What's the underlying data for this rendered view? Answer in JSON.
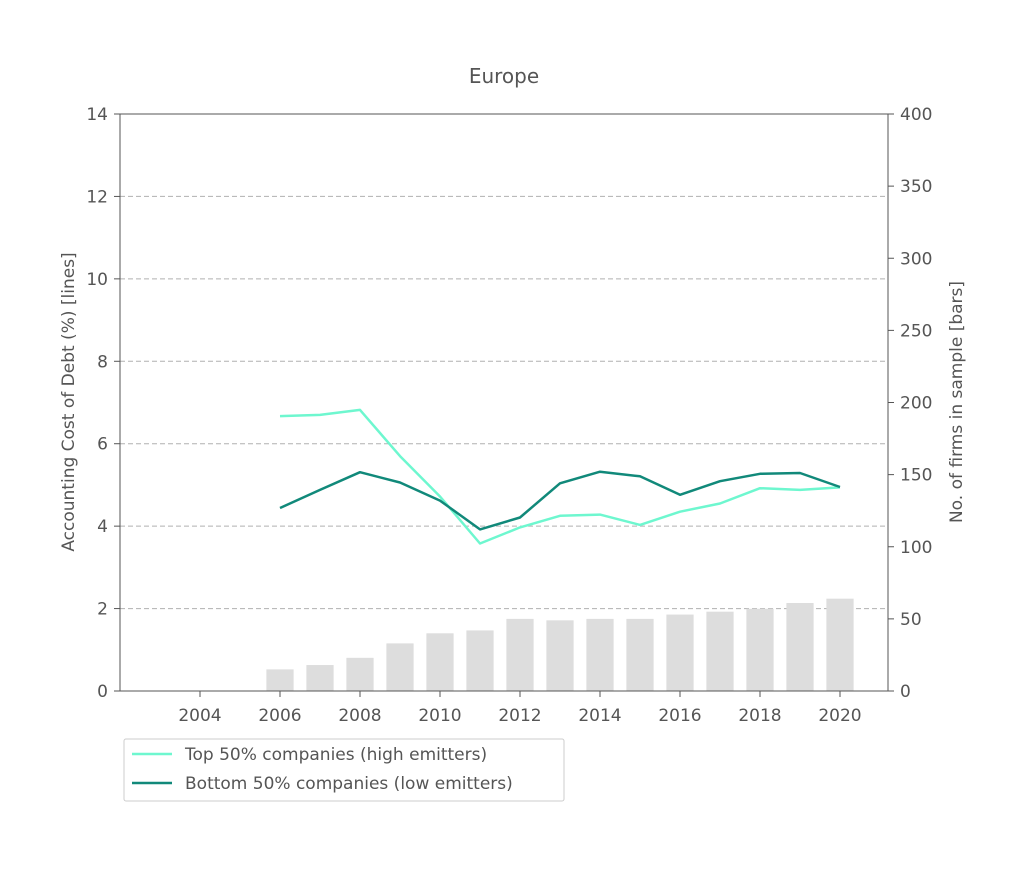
{
  "chart_data": {
    "type": "line",
    "title": "Europe",
    "xlabel": "",
    "ylabel": "Accounting Cost of Debt (%)  [lines]",
    "y2label": "No. of firms in sample [bars]",
    "xlim": [
      2002,
      2021.2
    ],
    "ylim": [
      0,
      14
    ],
    "y2lim": [
      0,
      400
    ],
    "x_ticks": [
      2004,
      2006,
      2008,
      2010,
      2012,
      2014,
      2016,
      2018,
      2020
    ],
    "y_ticks": [
      0,
      2,
      4,
      6,
      8,
      10,
      12,
      14
    ],
    "y2_ticks": [
      0,
      50,
      100,
      150,
      200,
      250,
      300,
      350,
      400
    ],
    "grid": "horizontal dashed",
    "legend_position": "below-left",
    "x": [
      2006,
      2007,
      2008,
      2009,
      2010,
      2011,
      2012,
      2013,
      2014,
      2015,
      2016,
      2017,
      2018,
      2019,
      2020
    ],
    "series": [
      {
        "name": "Top 50% companies (high emitters)",
        "color": "#6ef7cf",
        "values": [
          6.67,
          6.7,
          6.82,
          5.7,
          4.72,
          3.58,
          3.97,
          4.25,
          4.28,
          4.03,
          4.35,
          4.55,
          4.92,
          4.88,
          4.94
        ]
      },
      {
        "name": "Bottom 50% companies (low emitters)",
        "color": "#11897a",
        "values": [
          4.44,
          4.88,
          5.31,
          5.06,
          4.62,
          3.92,
          4.21,
          5.04,
          5.32,
          5.21,
          4.76,
          5.09,
          5.27,
          5.29,
          4.95
        ]
      }
    ],
    "bars": {
      "name": "No. of firms in sample",
      "axis": "right",
      "color": "#dddddd",
      "values": [
        15,
        18,
        23,
        33,
        40,
        42,
        50,
        49,
        50,
        50,
        53,
        55,
        57,
        61,
        64
      ]
    }
  }
}
